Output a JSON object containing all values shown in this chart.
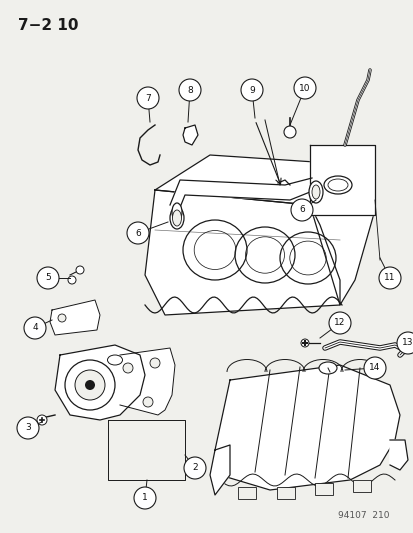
{
  "title": "7−2 10",
  "bg_color": "#f0f0ec",
  "line_color": "#1a1a1a",
  "text_color": "#111111",
  "fig_width": 4.14,
  "fig_height": 5.33,
  "dpi": 100,
  "watermark": "94107  210"
}
